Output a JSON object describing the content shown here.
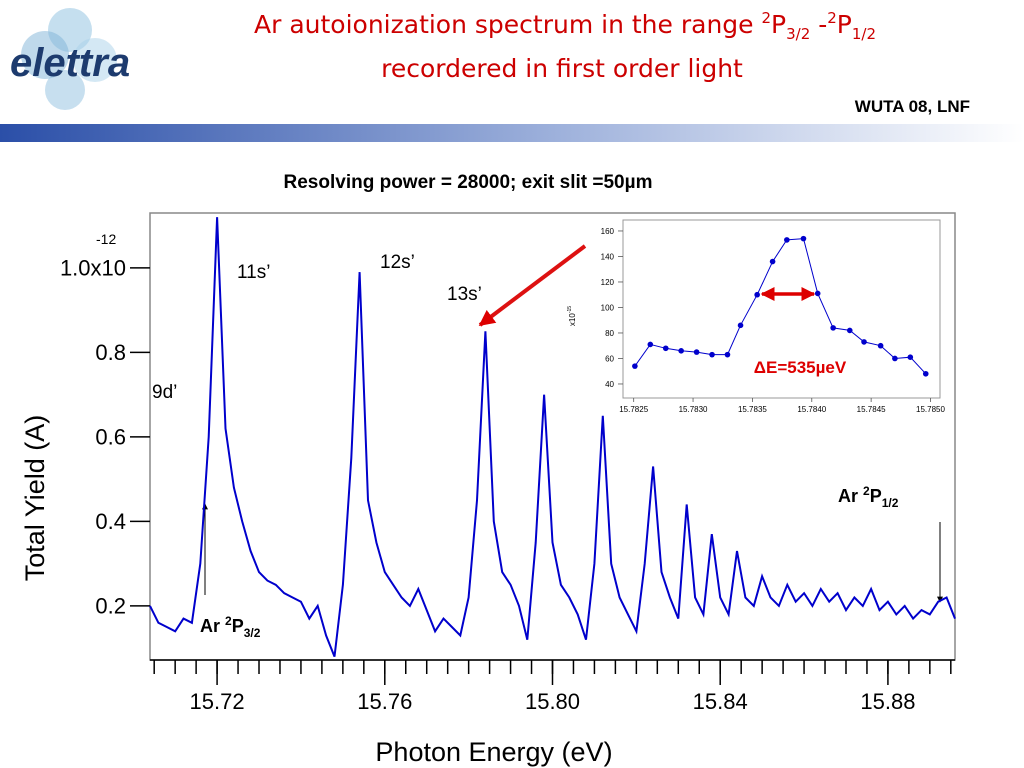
{
  "header": {
    "logo": "elettra",
    "event": "WUTA 08, LNF",
    "title": {
      "line1": "Ar autoionization spectrum in the range ",
      "sup1": "2",
      "p1": "P",
      "sub1": "3/2",
      "dash": " -",
      "sup2": "2",
      "p2": "P",
      "sub2": "1/2",
      "line2": "recordered in first order light"
    },
    "subtitle": "Resolving power  = 28000; exit slit =50µm"
  },
  "chart_data": [
    {
      "type": "line",
      "xlabel": "Photon Energy (eV)",
      "ylabel": "Total Yield (A)",
      "y_exponent": "-12",
      "color": "#0000cc",
      "xlim": [
        15.704,
        15.896
      ],
      "ylim": [
        0.072,
        1.13
      ],
      "xticks": [
        15.72,
        15.76,
        {
          "value": 15.8,
          "label": "15.80"
        },
        15.84,
        15.88
      ],
      "xminor_ticks": [
        15.705,
        15.71,
        15.715,
        15.72,
        15.725,
        15.73,
        15.735,
        15.74,
        15.745,
        15.75,
        15.755,
        15.76,
        15.765,
        15.77,
        15.775,
        15.78,
        15.785,
        15.79,
        15.795,
        15.8,
        15.805,
        15.81,
        15.815,
        15.82,
        15.825,
        15.83,
        15.835,
        15.84,
        15.845,
        15.85,
        15.855,
        15.86,
        15.865,
        15.87,
        15.875,
        15.88,
        15.885,
        15.89,
        15.895
      ],
      "yticks": [
        {
          "value": 1.0,
          "label": "1.0x10"
        },
        0.8,
        0.6,
        0.4,
        0.2
      ],
      "x": [
        15.704,
        15.706,
        15.708,
        15.71,
        15.712,
        15.714,
        15.716,
        15.718,
        15.72,
        15.722,
        15.724,
        15.726,
        15.728,
        15.73,
        15.732,
        15.734,
        15.736,
        15.738,
        15.74,
        15.742,
        15.744,
        15.746,
        15.748,
        15.75,
        15.752,
        15.754,
        15.756,
        15.758,
        15.76,
        15.762,
        15.764,
        15.766,
        15.768,
        15.77,
        15.772,
        15.774,
        15.776,
        15.778,
        15.78,
        15.782,
        15.784,
        15.786,
        15.788,
        15.79,
        15.792,
        15.794,
        15.796,
        15.798,
        15.8,
        15.802,
        15.804,
        15.806,
        15.808,
        15.81,
        15.812,
        15.814,
        15.816,
        15.818,
        15.82,
        15.822,
        15.824,
        15.826,
        15.828,
        15.83,
        15.832,
        15.834,
        15.836,
        15.838,
        15.84,
        15.842,
        15.844,
        15.846,
        15.848,
        15.85,
        15.852,
        15.854,
        15.856,
        15.858,
        15.86,
        15.862,
        15.864,
        15.866,
        15.868,
        15.87,
        15.872,
        15.874,
        15.876,
        15.878,
        15.88,
        15.882,
        15.884,
        15.886,
        15.888,
        15.89,
        15.892,
        15.894,
        15.896
      ],
      "values": [
        0.2,
        0.16,
        0.15,
        0.14,
        0.17,
        0.16,
        0.3,
        0.6,
        1.12,
        0.62,
        0.48,
        0.4,
        0.33,
        0.28,
        0.26,
        0.25,
        0.23,
        0.22,
        0.21,
        0.17,
        0.2,
        0.13,
        0.08,
        0.25,
        0.55,
        0.99,
        0.45,
        0.35,
        0.28,
        0.25,
        0.22,
        0.2,
        0.24,
        0.19,
        0.14,
        0.17,
        0.15,
        0.13,
        0.22,
        0.45,
        0.85,
        0.4,
        0.28,
        0.25,
        0.2,
        0.12,
        0.35,
        0.7,
        0.35,
        0.25,
        0.22,
        0.18,
        0.12,
        0.3,
        0.65,
        0.3,
        0.22,
        0.18,
        0.14,
        0.3,
        0.53,
        0.28,
        0.22,
        0.17,
        0.44,
        0.22,
        0.18,
        0.37,
        0.22,
        0.18,
        0.33,
        0.22,
        0.2,
        0.27,
        0.22,
        0.2,
        0.25,
        0.21,
        0.23,
        0.2,
        0.24,
        0.21,
        0.23,
        0.19,
        0.22,
        0.2,
        0.24,
        0.19,
        0.21,
        0.18,
        0.2,
        0.17,
        0.19,
        0.18,
        0.21,
        0.22,
        0.17
      ],
      "annotations": [
        "11s’",
        "12s’",
        "13s’",
        "9d’"
      ],
      "levels": [
        {
          "prefix": "Ar ",
          "sup": "2",
          "main": "P",
          "sub": "3/2"
        },
        {
          "prefix": "Ar ",
          "sup": "2",
          "main": "P",
          "sub": "1/2"
        }
      ]
    },
    {
      "type": "line",
      "ylabel": "x10",
      "y_exponent": "-15",
      "color": "#0000cc",
      "annotation": "ΔE=535µeV",
      "xlim": [
        15.78241,
        15.78508
      ],
      "ylim": [
        29,
        168.6
      ],
      "xticks": [
        15.7825,
        {
          "value": 15.783,
          "label": "15.7830"
        },
        15.7835,
        {
          "value": 15.784,
          "label": "15.7840"
        },
        15.7845,
        {
          "value": 15.785,
          "label": "15.7850"
        }
      ],
      "yticks": [
        40,
        60,
        80,
        100,
        120,
        140,
        160
      ],
      "x": [
        15.78251,
        15.78264,
        15.78277,
        15.7829,
        15.78303,
        15.78316,
        15.78329,
        15.7834,
        15.78354,
        15.78367,
        15.78379,
        15.78393,
        15.78405,
        15.78418,
        15.78432,
        15.78444,
        15.78458,
        15.7847,
        15.78483,
        15.78496
      ],
      "values": [
        54,
        71,
        68,
        66,
        65,
        63,
        63,
        86,
        110,
        136,
        153,
        154,
        111,
        84,
        82,
        73,
        70,
        60,
        61,
        48
      ]
    }
  ]
}
